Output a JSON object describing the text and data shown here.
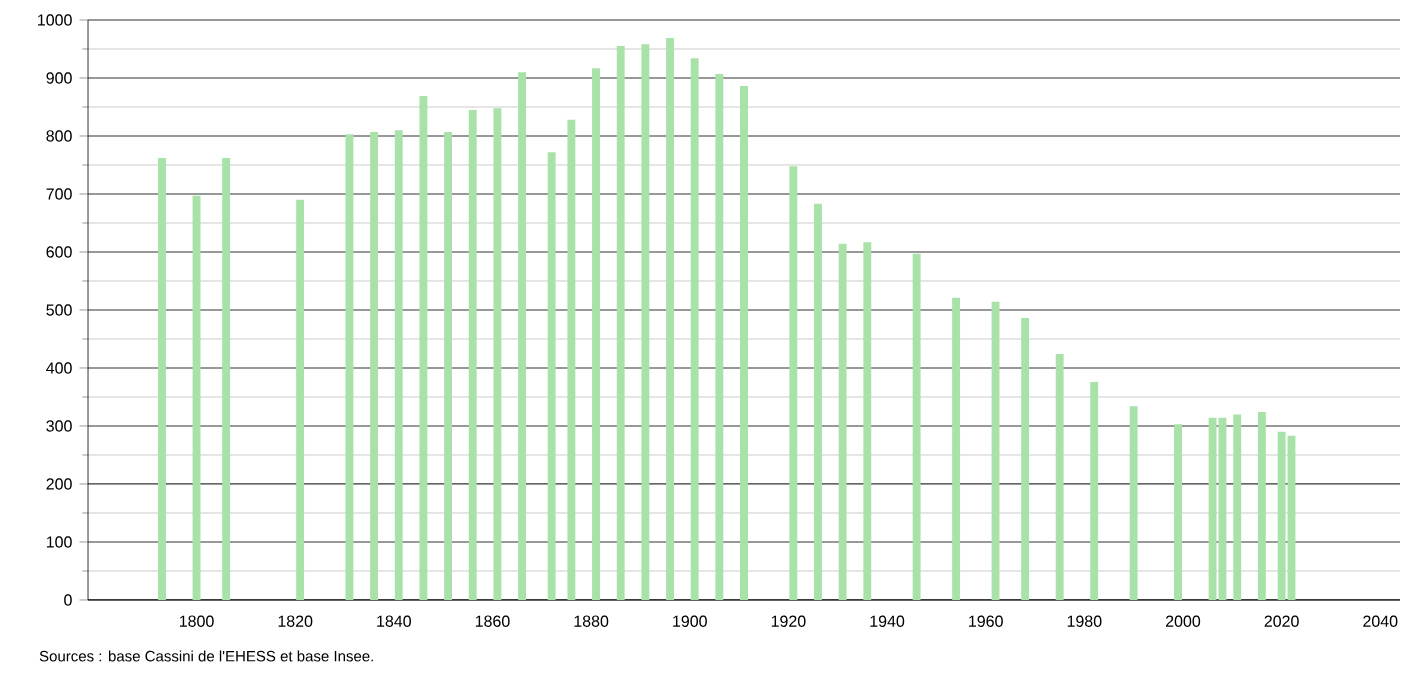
{
  "chart_data": {
    "type": "bar",
    "annotations": [
      "Sources : base Cassini de l'EHESS et base Insee."
    ],
    "x": [
      1793,
      1800,
      1806,
      1821,
      1831,
      1836,
      1841,
      1846,
      1851,
      1856,
      1861,
      1866,
      1872,
      1876,
      1881,
      1886,
      1891,
      1896,
      1901,
      1906,
      1911,
      1921,
      1926,
      1931,
      1936,
      1946,
      1954,
      1962,
      1968,
      1975,
      1982,
      1990,
      1999,
      2006,
      2008,
      2011,
      2016,
      2020,
      2022
    ],
    "values": [
      762,
      697,
      762,
      690,
      803,
      807,
      810,
      869,
      807,
      845,
      848,
      910,
      772,
      828,
      917,
      955,
      958,
      969,
      934,
      907,
      886,
      748,
      683,
      614,
      617,
      597,
      521,
      514,
      486,
      424,
      376,
      334,
      303,
      314,
      314,
      320,
      324,
      290,
      283
    ],
    "color": "#a8e2a8",
    "xlim": [
      1778,
      2044
    ],
    "xticks": [
      1800,
      1820,
      1840,
      1860,
      1880,
      1900,
      1920,
      1940,
      1960,
      1980,
      2000,
      2020,
      2040
    ],
    "ylim": [
      0,
      1000
    ],
    "yticks": [
      0,
      100,
      200,
      300,
      400,
      500,
      600,
      700,
      800,
      900,
      1000
    ],
    "grid": "y"
  }
}
